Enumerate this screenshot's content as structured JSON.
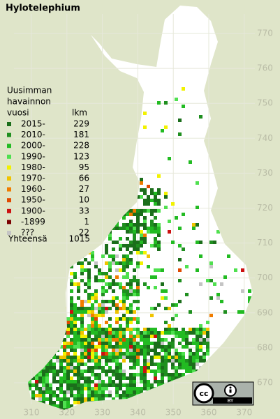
{
  "title": "Hylotelephium",
  "legend": {
    "header": [
      "Uusimman",
      "havainnon",
      "vuosi"
    ],
    "count_header": "lkm",
    "entries": [
      {
        "label": "2015-",
        "count": 229,
        "color": "#1b6e1b"
      },
      {
        "label": "2010-",
        "count": 181,
        "color": "#1f8f1f"
      },
      {
        "label": "2000-",
        "count": 228,
        "color": "#22bb22"
      },
      {
        "label": "1990-",
        "count": 123,
        "color": "#4fe04f"
      },
      {
        "label": "1980-",
        "count": 95,
        "color": "#f2f200"
      },
      {
        "label": "1970-",
        "count": 66,
        "color": "#f0c400"
      },
      {
        "label": "1960-",
        "count": 27,
        "color": "#f07c00"
      },
      {
        "label": "1950-",
        "count": 10,
        "color": "#e04a00"
      },
      {
        "label": "1900-",
        "count": 33,
        "color": "#cc1010"
      },
      {
        "label": "-1899",
        "count": 1,
        "color": "#7a0000"
      },
      {
        "label": "???",
        "count": 22,
        "color": "#c4c4c4"
      }
    ],
    "total": {
      "label": "Yhteensä",
      "count": 1015
    }
  },
  "axes": {
    "north": [
      770,
      760,
      750,
      740,
      730,
      720,
      710,
      700,
      690,
      680,
      670
    ],
    "east": [
      310,
      320,
      330,
      340,
      350,
      360,
      370
    ]
  },
  "license": "BY"
}
